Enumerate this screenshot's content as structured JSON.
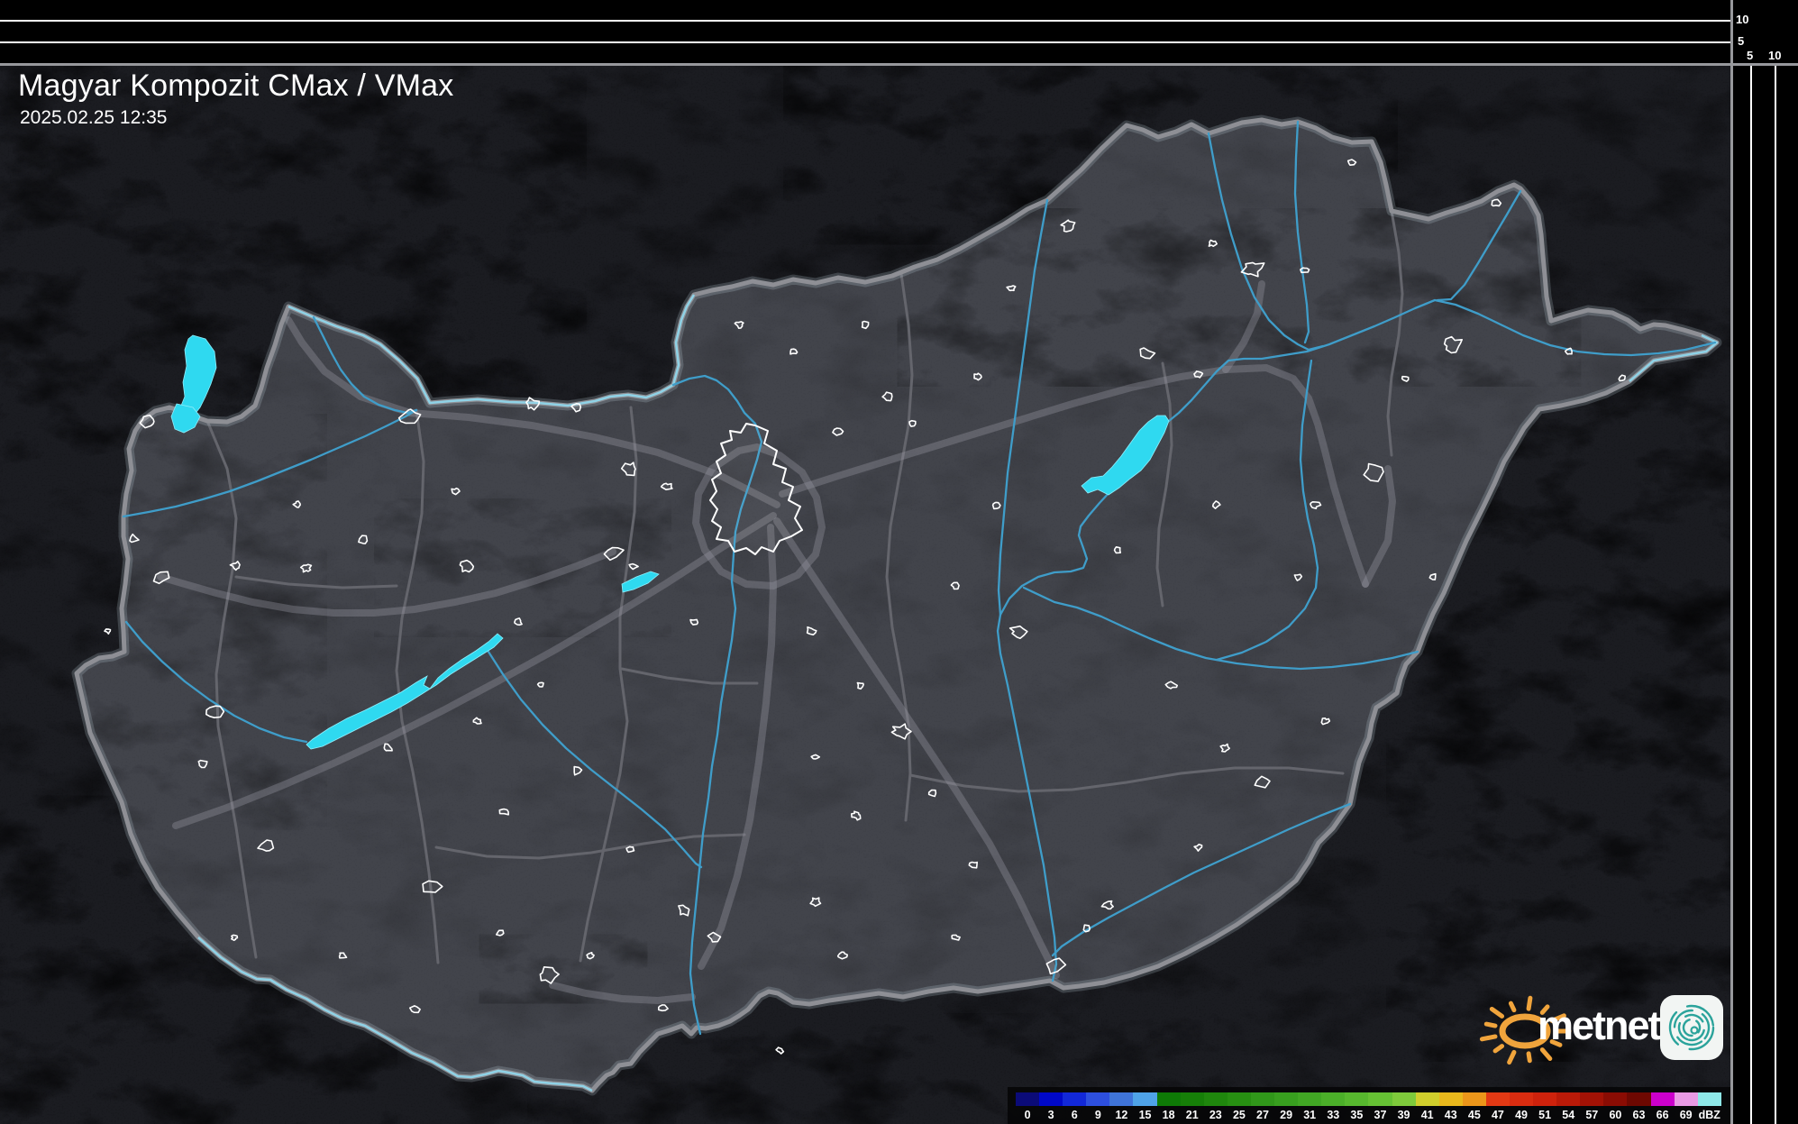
{
  "header": {
    "title": "Magyar Kompozit CMax / VMax",
    "timestamp": "2025.02.25 12:35"
  },
  "profile_scale": {
    "top_labels": [
      "10",
      "5"
    ],
    "right_labels": [
      "5",
      "10"
    ]
  },
  "legend": {
    "unit": "dBZ",
    "labels": [
      "0",
      "3",
      "6",
      "9",
      "12",
      "15",
      "18",
      "21",
      "23",
      "25",
      "27",
      "29",
      "31",
      "33",
      "35",
      "37",
      "39",
      "41",
      "43",
      "45",
      "47",
      "49",
      "51",
      "54",
      "57",
      "60",
      "63",
      "66",
      "69",
      "dBZ"
    ],
    "colors": [
      "#0B0B78",
      "#0008C8",
      "#1228D8",
      "#2D4FDE",
      "#3F74D8",
      "#4FA3E8",
      "#0E7A06",
      "#167F08",
      "#1F870D",
      "#278F12",
      "#30971A",
      "#389F1F",
      "#41A724",
      "#4BAF29",
      "#57B82E",
      "#66C134",
      "#7ECA3B",
      "#D0CE2C",
      "#E9B81C",
      "#EC961A",
      "#E23914",
      "#D92C10",
      "#CE220C",
      "#BA1A08",
      "#A21205",
      "#8A0C03",
      "#6E0801",
      "#CC00CC",
      "#E99AE4",
      "#8EE8E8"
    ]
  },
  "logo": {
    "text": "metnet",
    "icons": [
      "sun-icon",
      "swirl-icon"
    ],
    "sun_color": "#F0A43C",
    "swirl_color": "#2BA39B"
  },
  "map_colors": {
    "outside": "#1B1C21",
    "inside": "#42444B",
    "country_border": "#8E8F95",
    "county_border": "#64656C",
    "road": "#9A9CA6",
    "river": "#3F9DC9",
    "river_border_highlight": "#8FD2E6",
    "lake": "#2FD9F0",
    "city_outline": "#FFFFFF"
  }
}
